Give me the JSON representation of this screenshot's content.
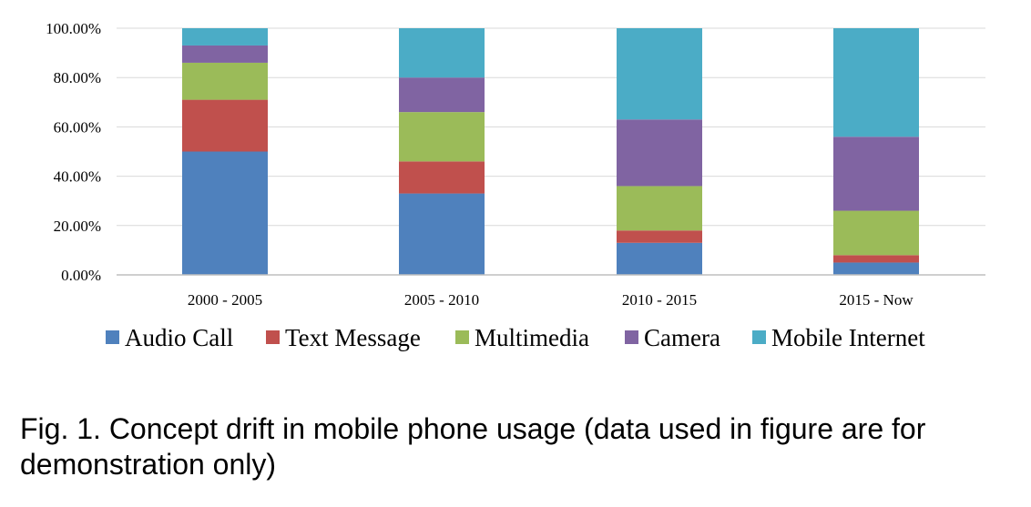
{
  "chart_data": {
    "type": "bar",
    "stacked": true,
    "title": "",
    "xlabel": "",
    "ylabel": "",
    "ylim": [
      0,
      100
    ],
    "y_tick_values": [
      0,
      20,
      40,
      60,
      80,
      100
    ],
    "y_tick_labels": [
      "0.00%",
      "20.00%",
      "40.00%",
      "60.00%",
      "80.00%",
      "100.00%"
    ],
    "categories": [
      "2000 - 2005",
      "2005 - 2010",
      "2010 - 2015",
      "2015 - Now"
    ],
    "grid": true,
    "legend_position": "bottom",
    "series": [
      {
        "name": "Audio Call",
        "color": "#4f81bd",
        "values": [
          50,
          33,
          13,
          5
        ]
      },
      {
        "name": "Text Message",
        "color": "#c0504d",
        "values": [
          21,
          13,
          5,
          3
        ]
      },
      {
        "name": "Multimedia",
        "color": "#9bbb59",
        "values": [
          15,
          20,
          18,
          18
        ]
      },
      {
        "name": "Camera",
        "color": "#8064a2",
        "values": [
          7,
          14,
          27,
          30
        ]
      },
      {
        "name": "Mobile Internet",
        "color": "#4bacc6",
        "values": [
          7,
          20,
          37,
          44
        ]
      }
    ]
  },
  "caption": "Fig. 1. Concept drift in mobile phone usage (data used in figure are for demonstration only)",
  "colors": {
    "grid": "#d9d9d9",
    "axis": "#bfbfbf",
    "background": "#ffffff"
  }
}
